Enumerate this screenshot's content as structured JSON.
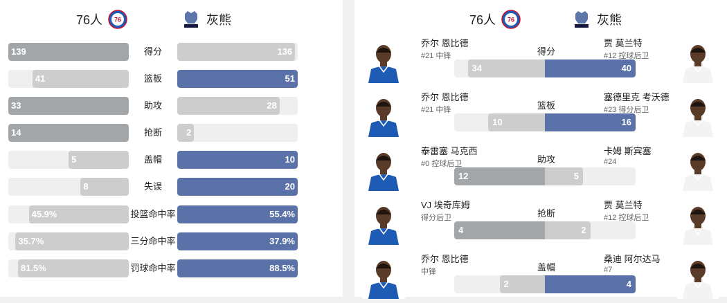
{
  "teams": {
    "home": {
      "name": "76人",
      "logo": "76ers-logo",
      "color": "#a3a6a8"
    },
    "away": {
      "name": "灰熊",
      "logo": "grizzlies-logo",
      "color": "#5a72a8"
    }
  },
  "team_stats": [
    {
      "label": "得分",
      "left": "139",
      "right": "136",
      "left_frac": 1.0,
      "right_frac": 0.978,
      "leader": "left"
    },
    {
      "label": "篮板",
      "left": "41",
      "right": "51",
      "left_frac": 0.8,
      "right_frac": 1.0,
      "leader": "right"
    },
    {
      "label": "助攻",
      "left": "33",
      "right": "28",
      "left_frac": 1.0,
      "right_frac": 0.85,
      "leader": "left"
    },
    {
      "label": "抢断",
      "left": "14",
      "right": "2",
      "left_frac": 1.0,
      "right_frac": 0.14,
      "leader": "left"
    },
    {
      "label": "盖帽",
      "left": "5",
      "right": "10",
      "left_frac": 0.5,
      "right_frac": 1.0,
      "leader": "right"
    },
    {
      "label": "失误",
      "left": "8",
      "right": "20",
      "left_frac": 0.4,
      "right_frac": 1.0,
      "leader": "right"
    },
    {
      "label": "投篮命中率",
      "left": "45.9%",
      "right": "55.4%",
      "left_frac": 0.83,
      "right_frac": 1.0,
      "leader": "right"
    },
    {
      "label": "三分命中率",
      "left": "35.7%",
      "right": "37.9%",
      "left_frac": 0.94,
      "right_frac": 1.0,
      "leader": "right"
    },
    {
      "label": "罚球命中率",
      "left": "81.5%",
      "right": "88.5%",
      "left_frac": 0.92,
      "right_frac": 1.0,
      "leader": "right"
    }
  ],
  "leaders": [
    {
      "label": "得分",
      "left": {
        "name": "乔尔 恩比德",
        "meta": "#21 中锋",
        "value": "34",
        "frac": 0.85
      },
      "right": {
        "name": "贾 莫兰特",
        "meta": "#12 控球后卫",
        "value": "40",
        "frac": 1.0
      },
      "leader": "right"
    },
    {
      "label": "篮板",
      "left": {
        "name": "乔尔 恩比德",
        "meta": "#21 中锋",
        "value": "10",
        "frac": 0.625
      },
      "right": {
        "name": "塞德里克 考沃德",
        "meta": "#23 得分后卫",
        "value": "16",
        "frac": 1.0
      },
      "leader": "right"
    },
    {
      "label": "助攻",
      "left": {
        "name": "泰雷塞 马克西",
        "meta": "#0 控球后卫",
        "value": "12",
        "frac": 1.0
      },
      "right": {
        "name": "卡姆 斯宾塞",
        "meta": "#24",
        "value": "5",
        "frac": 0.42
      },
      "leader": "left"
    },
    {
      "label": "抢断",
      "left": {
        "name": "VJ 埃奇库姆",
        "meta": "得分后卫",
        "value": "4",
        "frac": 1.0
      },
      "right": {
        "name": "贾 莫兰特",
        "meta": "#12 控球后卫",
        "value": "2",
        "frac": 0.5
      },
      "leader": "left"
    },
    {
      "label": "盖帽",
      "left": {
        "name": "乔尔 恩比德",
        "meta": "中锋",
        "value": "2",
        "frac": 0.5
      },
      "right": {
        "name": "桑迪 阿尔达马",
        "meta": "#7",
        "value": "4",
        "frac": 1.0
      },
      "leader": "right"
    }
  ]
}
